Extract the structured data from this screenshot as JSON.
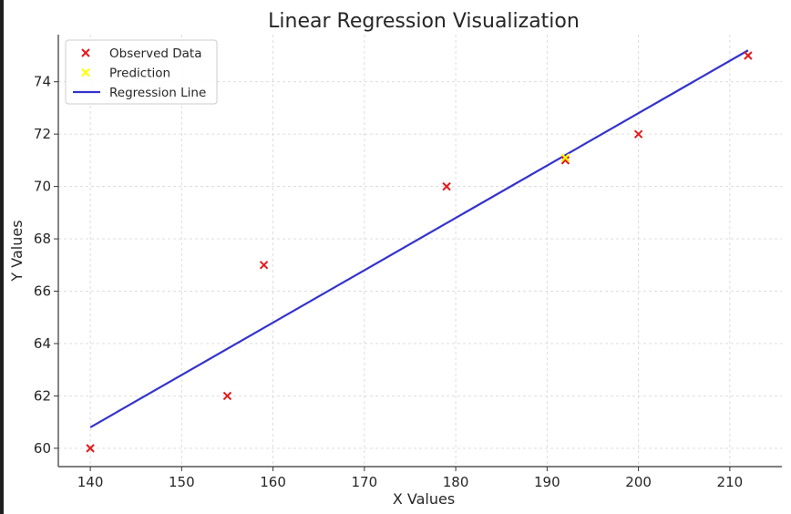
{
  "chart_data": {
    "type": "scatter",
    "title": "Linear Regression Visualization",
    "xlabel": "X Values",
    "ylabel": "Y Values",
    "xlim": [
      136.5,
      215.7
    ],
    "ylim": [
      59.3,
      75.8
    ],
    "xticks": [
      140,
      150,
      160,
      170,
      180,
      190,
      200,
      210
    ],
    "yticks": [
      60,
      62,
      64,
      66,
      68,
      70,
      72,
      74
    ],
    "grid": true,
    "legend_position": "top-left",
    "series": [
      {
        "name": "Observed Data",
        "kind": "scatter",
        "marker": "x",
        "color": "#e41a1c",
        "points": [
          {
            "x": 140,
            "y": 60
          },
          {
            "x": 155,
            "y": 62
          },
          {
            "x": 159,
            "y": 67
          },
          {
            "x": 179,
            "y": 70
          },
          {
            "x": 192,
            "y": 71
          },
          {
            "x": 200,
            "y": 72
          },
          {
            "x": 212,
            "y": 75
          }
        ]
      },
      {
        "name": "Prediction",
        "kind": "scatter",
        "marker": "x",
        "color": "#ffff00",
        "points": [
          {
            "x": 192,
            "y": 71.1
          }
        ]
      },
      {
        "name": "Regression Line",
        "kind": "line",
        "color": "#3333cc",
        "points": [
          {
            "x": 140,
            "y": 60.8
          },
          {
            "x": 212,
            "y": 75.2
          }
        ]
      }
    ]
  }
}
